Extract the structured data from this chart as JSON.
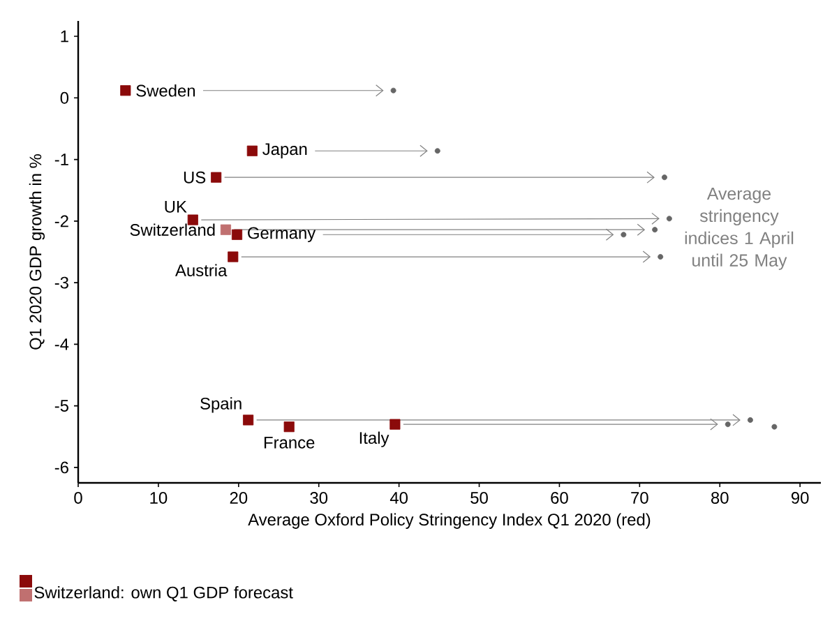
{
  "chart_data": {
    "type": "scatter",
    "xlabel": "Average Oxford Policy Stringency Index Q1 2020 (red)",
    "ylabel": "Q1 2020 GDP growth in %",
    "xlim": [
      0,
      92.6
    ],
    "ylim": [
      -6.25,
      1.25
    ],
    "xticks": [
      0,
      10,
      20,
      30,
      40,
      50,
      60,
      70,
      80,
      90
    ],
    "yticks": [
      -6,
      -5,
      -4,
      -3,
      -2,
      -1,
      0,
      1
    ],
    "grid": false,
    "legend": "bottom left",
    "series": [
      {
        "color": "#8b0a0a",
        "marker": "square",
        "x": [
          5.9,
          21.7,
          17.2,
          14.3,
          19.8,
          19.3,
          21.2,
          26.3,
          39.5
        ],
        "values": [
          0.12,
          -0.86,
          -1.29,
          -1.98,
          -2.22,
          -2.58,
          -5.23,
          -5.34,
          -5.3
        ]
      },
      {
        "name": "Switzerland: own Q1 GDP forecast",
        "color": "#c07070",
        "marker": "square",
        "x": [
          18.4
        ],
        "values": [
          -2.14
        ]
      },
      {
        "color": "#666666",
        "marker": "circle",
        "x": [
          39.3,
          44.8,
          73.1,
          73.7,
          71.9,
          68.0,
          72.6,
          83.8,
          86.8,
          81.0
        ],
        "values": [
          0.12,
          -0.86,
          -1.29,
          -1.96,
          -2.14,
          -2.22,
          -2.58,
          -5.23,
          -5.34,
          -5.3
        ]
      }
    ],
    "annotations": [
      {
        "text": "Sweden",
        "x": 5.9,
        "y": 0.12
      },
      {
        "text": "Japan",
        "x": 21.7,
        "y": -0.86
      },
      {
        "text": "US",
        "x": 17.2,
        "y": -1.29
      },
      {
        "text": "UK",
        "x": 14.3,
        "y": -1.98
      },
      {
        "text": "Switzerland",
        "x": 18.4,
        "y": -2.14
      },
      {
        "text": "Germany",
        "x": 19.8,
        "y": -2.22
      },
      {
        "text": "Austria",
        "x": 19.3,
        "y": -2.58
      },
      {
        "text": "Spain",
        "x": 21.2,
        "y": -5.23
      },
      {
        "text": "France",
        "x": 26.3,
        "y": -5.34
      },
      {
        "text": "Italy",
        "x": 39.5,
        "y": -5.3
      },
      "Average stringency indices 1 April until 25 May"
    ]
  }
}
